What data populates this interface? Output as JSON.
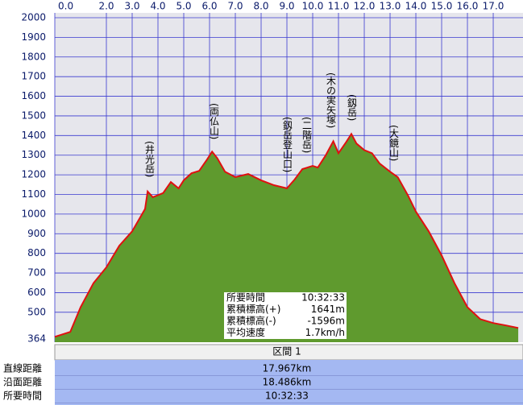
{
  "chart_data": {
    "type": "area",
    "line_color": "#e01010",
    "fill_color": "#5f9a2e",
    "grid": true,
    "grid_color": "#3a3ad0",
    "x": [
      0,
      0.6,
      1.0,
      1.5,
      2.0,
      2.5,
      3.0,
      3.5,
      3.6,
      3.8,
      4.2,
      4.5,
      4.8,
      5.0,
      5.3,
      5.6,
      5.9,
      6.1,
      6.3,
      6.6,
      7.0,
      7.5,
      8.0,
      8.5,
      9.0,
      9.3,
      9.6,
      10.0,
      10.2,
      10.5,
      10.8,
      11.0,
      11.3,
      11.5,
      11.7,
      12.0,
      12.3,
      12.6,
      13.0,
      13.3,
      13.7,
      14.0,
      14.5,
      15.0,
      15.5,
      16.0,
      16.5,
      17.0,
      17.5,
      17.97
    ],
    "values": [
      375,
      400,
      526,
      648,
      729,
      839,
      912,
      1026,
      1115,
      1086,
      1107,
      1163,
      1131,
      1172,
      1208,
      1220,
      1277,
      1318,
      1285,
      1216,
      1188,
      1204,
      1172,
      1147,
      1131,
      1176,
      1229,
      1245,
      1237,
      1298,
      1371,
      1310,
      1367,
      1408,
      1359,
      1326,
      1310,
      1257,
      1216,
      1188,
      1094,
      1013,
      912,
      790,
      648,
      526,
      465,
      445,
      433,
      420
    ],
    "xlim": [
      0,
      18.03
    ],
    "ylim": [
      364,
      2000
    ],
    "xticks": [
      {
        "value": 0,
        "label": "0.0"
      },
      {
        "value": 2,
        "label": "2.0"
      },
      {
        "value": 3,
        "label": "3.0"
      },
      {
        "value": 4,
        "label": "4.0"
      },
      {
        "value": 5,
        "label": "5.0"
      },
      {
        "value": 6,
        "label": "6.0"
      },
      {
        "value": 7,
        "label": "7.0"
      },
      {
        "value": 8,
        "label": "8.0"
      },
      {
        "value": 9,
        "label": "9.0"
      },
      {
        "value": 10,
        "label": "10.0"
      },
      {
        "value": 11,
        "label": "11.0"
      },
      {
        "value": 12,
        "label": "12.0"
      },
      {
        "value": 13,
        "label": "13.0"
      },
      {
        "value": 14,
        "label": "14.0"
      },
      {
        "value": 15,
        "label": "15.0"
      },
      {
        "value": 16,
        "label": "16.0"
      },
      {
        "value": 17,
        "label": "17.0"
      }
    ],
    "yticks": [
      364,
      500,
      600,
      700,
      800,
      900,
      1000,
      1100,
      1200,
      1300,
      1400,
      1500,
      1600,
      1700,
      1800,
      1900,
      2000
    ],
    "annotations": [
      "(井光岳)",
      "(両仏山)",
      "(釼岳登山口)",
      "(二階岳)",
      "(木の実矢塚)",
      "(釼岳)",
      "(大鏡山)"
    ]
  },
  "info_box": [
    [
      "所要時間",
      "10:32:33"
    ],
    [
      "累積標高(+)",
      "1641m"
    ],
    [
      "累積標高(-)",
      "-1596m"
    ],
    [
      "平均速度",
      "1.7km/h"
    ]
  ],
  "table": {
    "header": "区間 1",
    "rows": [
      [
        "直線距離",
        "17.967km"
      ],
      [
        "沿面距離",
        "18.486km"
      ],
      [
        "所要時間",
        "10:32:33"
      ]
    ]
  }
}
